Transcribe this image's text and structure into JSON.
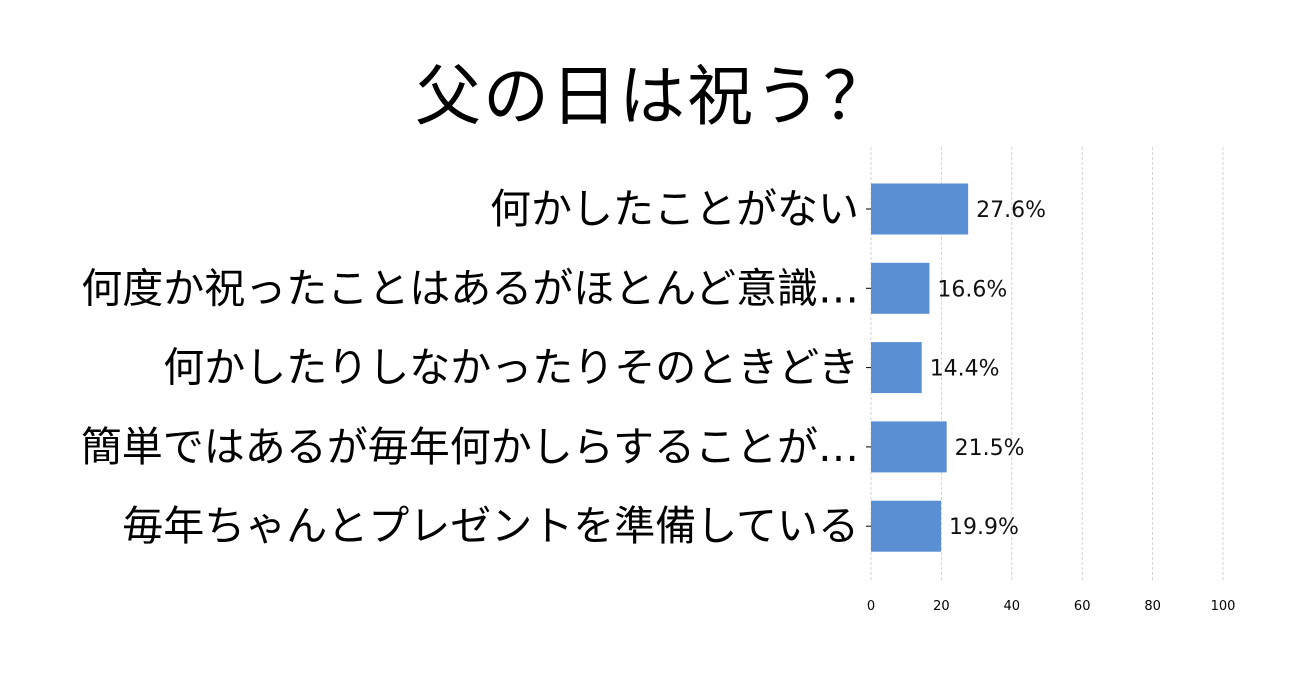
{
  "chart_data": {
    "type": "bar",
    "orientation": "horizontal",
    "title": "父の日は祝う？",
    "categories": [
      "何かしたことがない",
      "何度か祝ったことはあるがほとんど意識…",
      "何かしたりしなかったりそのときどき",
      "簡単ではあるが毎年何かしらすることが…",
      "毎年ちゃんとプレゼントを準備している"
    ],
    "values": [
      27.6,
      16.6,
      14.4,
      21.5,
      19.9
    ],
    "value_labels": [
      "27.6%",
      "16.6%",
      "14.4%",
      "21.5%",
      "19.9%"
    ],
    "xlim": [
      0,
      100
    ],
    "xticks": [
      "0",
      "20",
      "40",
      "60",
      "80",
      "100"
    ],
    "xtick_values": [
      0,
      20,
      40,
      60,
      80,
      100
    ],
    "grid": "vertical dashed",
    "bar_color": "#5b8fd4",
    "grid_color": "#cccccc"
  }
}
